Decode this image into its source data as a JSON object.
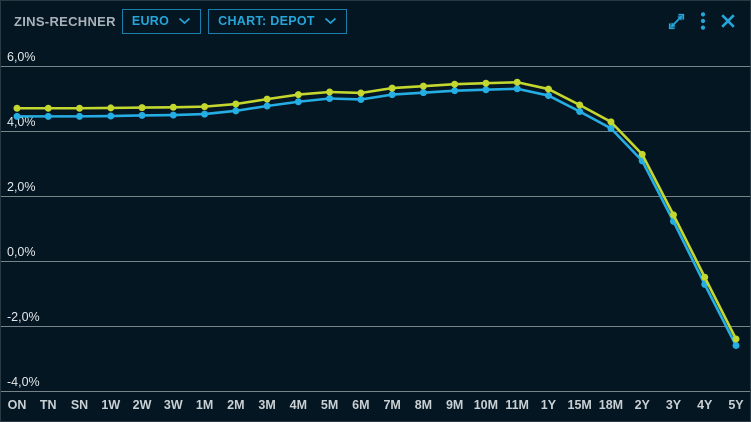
{
  "header": {
    "title": "ZINS-RECHNER",
    "dropdowns": [
      {
        "label": "EURO"
      },
      {
        "label": "CHART: DEPOT"
      }
    ]
  },
  "colors": {
    "accent": "#25a5da",
    "dropdown_border": "#1b7fae",
    "background": "#041622",
    "gridline": "#93a0a4",
    "tick_label": "#e2e7e9",
    "x_label": "#c9d0d4",
    "series_yellow": "#c3d72f",
    "series_blue": "#25aee4"
  },
  "chart_data": {
    "type": "line",
    "title": "",
    "xlabel": "",
    "ylabel": "",
    "grid": "horizontal",
    "legend": "none",
    "marker": "circle",
    "categories": [
      "ON",
      "TN",
      "SN",
      "1W",
      "2W",
      "3W",
      "1M",
      "2M",
      "3M",
      "4M",
      "5M",
      "6M",
      "7M",
      "8M",
      "9M",
      "10M",
      "11M",
      "1Y",
      "15M",
      "18M",
      "2Y",
      "3Y",
      "4Y",
      "5Y"
    ],
    "series": [
      {
        "name": "blue",
        "color": "#25aee4",
        "values": [
          4.45,
          4.45,
          4.45,
          4.46,
          4.48,
          4.49,
          4.52,
          4.62,
          4.77,
          4.9,
          5.0,
          4.97,
          5.12,
          5.18,
          5.24,
          5.27,
          5.3,
          5.09,
          4.6,
          4.08,
          3.08,
          1.22,
          -0.72,
          -2.6
        ]
      },
      {
        "name": "yellow",
        "color": "#c3d72f",
        "values": [
          4.7,
          4.7,
          4.7,
          4.71,
          4.72,
          4.73,
          4.75,
          4.83,
          4.98,
          5.12,
          5.2,
          5.17,
          5.32,
          5.38,
          5.44,
          5.47,
          5.5,
          5.29,
          4.8,
          4.28,
          3.28,
          1.42,
          -0.5,
          -2.4
        ]
      }
    ],
    "y_ticks": {
      "labels": [
        "6,0%",
        "4,0%",
        "2,0%",
        "0,0%",
        "-2,0%",
        "-4,0%"
      ],
      "values": [
        6,
        4,
        2,
        0,
        -2,
        -4
      ]
    },
    "ylim": [
      -4.15,
      6.75
    ]
  }
}
